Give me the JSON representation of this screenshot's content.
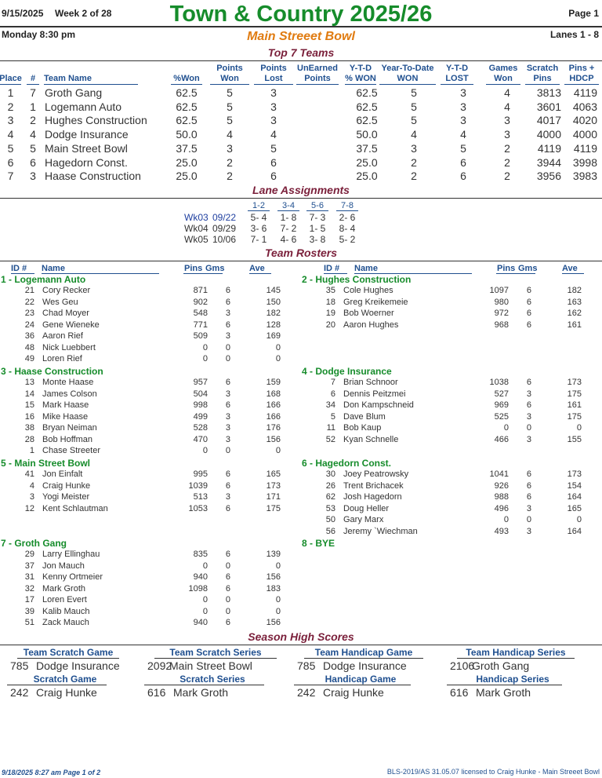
{
  "header": {
    "date": "9/15/2025",
    "week": "Week 2 of 28",
    "title": "Town & Country 2025/26",
    "page": "Page 1",
    "day_time": "Monday   8:30 pm",
    "center": "Main Streeet Bowl",
    "lanes": "Lanes 1 - 8"
  },
  "top_teams": {
    "title": "Top 7 Teams",
    "headers": [
      "Place",
      "#",
      "Team Name",
      "%Won",
      "Points Won",
      "Points Lost",
      "UnEarned Points",
      "Y-T-D % WON",
      "Year-To-Date WON",
      "Y-T-D LOST",
      "Games Won",
      "Scratch Pins",
      "Pins + HDCP"
    ],
    "rows": [
      {
        "place": "1",
        "num": "7",
        "name": "Groth Gang",
        "pct": "62.5",
        "pw": "5",
        "pl": "3",
        "ue": "",
        "ytdpct": "62.5",
        "ytdw": "5",
        "ytdl": "3",
        "gw": "4",
        "scr": "3813",
        "hdcp": "4119"
      },
      {
        "place": "2",
        "num": "1",
        "name": "Logemann Auto",
        "pct": "62.5",
        "pw": "5",
        "pl": "3",
        "ue": "",
        "ytdpct": "62.5",
        "ytdw": "5",
        "ytdl": "3",
        "gw": "4",
        "scr": "3601",
        "hdcp": "4063"
      },
      {
        "place": "3",
        "num": "2",
        "name": "Hughes Construction",
        "pct": "62.5",
        "pw": "5",
        "pl": "3",
        "ue": "",
        "ytdpct": "62.5",
        "ytdw": "5",
        "ytdl": "3",
        "gw": "3",
        "scr": "4017",
        "hdcp": "4020"
      },
      {
        "place": "4",
        "num": "4",
        "name": "Dodge Insurance",
        "pct": "50.0",
        "pw": "4",
        "pl": "4",
        "ue": "",
        "ytdpct": "50.0",
        "ytdw": "4",
        "ytdl": "4",
        "gw": "3",
        "scr": "4000",
        "hdcp": "4000"
      },
      {
        "place": "5",
        "num": "5",
        "name": "Main Street Bowl",
        "pct": "37.5",
        "pw": "3",
        "pl": "5",
        "ue": "",
        "ytdpct": "37.5",
        "ytdw": "3",
        "ytdl": "5",
        "gw": "2",
        "scr": "4119",
        "hdcp": "4119"
      },
      {
        "place": "6",
        "num": "6",
        "name": "Hagedorn Const.",
        "pct": "25.0",
        "pw": "2",
        "pl": "6",
        "ue": "",
        "ytdpct": "25.0",
        "ytdw": "2",
        "ytdl": "6",
        "gw": "2",
        "scr": "3944",
        "hdcp": "3998"
      },
      {
        "place": "7",
        "num": "3",
        "name": "Haase Construction",
        "pct": "25.0",
        "pw": "2",
        "pl": "6",
        "ue": "",
        "ytdpct": "25.0",
        "ytdw": "2",
        "ytdl": "6",
        "gw": "2",
        "scr": "3956",
        "hdcp": "3983"
      }
    ]
  },
  "lanes": {
    "title": "Lane Assignments",
    "pairs": [
      "1-2",
      "3-4",
      "5-6",
      "7-8"
    ],
    "rows": [
      {
        "wk": "Wk03",
        "date": "09/22",
        "a": "5- 4",
        "b": "1- 8",
        "c": "7- 3",
        "d": "2- 6"
      },
      {
        "wk": "Wk04",
        "date": "09/29",
        "a": "3- 6",
        "b": "7- 2",
        "c": "1- 5",
        "d": "8- 4"
      },
      {
        "wk": "Wk05",
        "date": "10/06",
        "a": "7- 1",
        "b": "4- 6",
        "c": "3- 8",
        "d": "5- 2"
      }
    ]
  },
  "rosters": {
    "title": "Team Rosters",
    "headers": {
      "id": "ID #",
      "name": "Name",
      "pins": "Pins",
      "gms": "Gms",
      "ave": "Ave"
    },
    "left": [
      {
        "team": "1 - Logemann Auto",
        "players": [
          [
            "21",
            "Cory Recker",
            "871",
            "6",
            "145"
          ],
          [
            "22",
            "Wes Geu",
            "902",
            "6",
            "150"
          ],
          [
            "23",
            "Chad Moyer",
            "548",
            "3",
            "182"
          ],
          [
            "24",
            "Gene Wieneke",
            "771",
            "6",
            "128"
          ],
          [
            "36",
            "Aaron Rief",
            "509",
            "3",
            "169"
          ],
          [
            "48",
            "Nick Luebbert",
            "0",
            "0",
            "0"
          ],
          [
            "49",
            "Loren Rief",
            "0",
            "0",
            "0"
          ]
        ]
      },
      {
        "team": "3 - Haase Construction",
        "players": [
          [
            "13",
            "Monte Haase",
            "957",
            "6",
            "159"
          ],
          [
            "14",
            "James Colson",
            "504",
            "3",
            "168"
          ],
          [
            "15",
            "Mark Haase",
            "998",
            "6",
            "166"
          ],
          [
            "16",
            "Mike Haase",
            "499",
            "3",
            "166"
          ],
          [
            "38",
            "Bryan Neiman",
            "528",
            "3",
            "176"
          ],
          [
            "28",
            "Bob Hoffman",
            "470",
            "3",
            "156"
          ],
          [
            "1",
            "Chase Streeter",
            "0",
            "0",
            "0"
          ]
        ]
      },
      {
        "team": "5 - Main Street Bowl",
        "players": [
          [
            "41",
            "Jon Einfalt",
            "995",
            "6",
            "165"
          ],
          [
            "4",
            "Craig Hunke",
            "1039",
            "6",
            "173"
          ],
          [
            "3",
            "Yogi Meister",
            "513",
            "3",
            "171"
          ],
          [
            "12",
            "Kent Schlautman",
            "1053",
            "6",
            "175"
          ]
        ]
      },
      {
        "team": "7 - Groth Gang",
        "players": [
          [
            "29",
            "Larry Ellinghau",
            "835",
            "6",
            "139"
          ],
          [
            "37",
            "Jon Mauch",
            "0",
            "0",
            "0"
          ],
          [
            "31",
            "Kenny Ortmeier",
            "940",
            "6",
            "156"
          ],
          [
            "32",
            "Mark Groth",
            "1098",
            "6",
            "183"
          ],
          [
            "17",
            "Loren Evert",
            "0",
            "0",
            "0"
          ],
          [
            "39",
            "Kalib Mauch",
            "0",
            "0",
            "0"
          ],
          [
            "51",
            "Zack Mauch",
            "940",
            "6",
            "156"
          ]
        ]
      }
    ],
    "right": [
      {
        "team": "2 - Hughes Construction",
        "players": [
          [
            "35",
            "Cole Hughes",
            "1097",
            "6",
            "182"
          ],
          [
            "18",
            "Greg Kreikemeie",
            "980",
            "6",
            "163"
          ],
          [
            "19",
            "Bob Woerner",
            "972",
            "6",
            "162"
          ],
          [
            "20",
            "Aaron Hughes",
            "968",
            "6",
            "161"
          ]
        ]
      },
      {
        "team": "4 - Dodge Insurance",
        "players": [
          [
            "7",
            "Brian Schnoor",
            "1038",
            "6",
            "173"
          ],
          [
            "6",
            "Dennis Peitzmei",
            "527",
            "3",
            "175"
          ],
          [
            "34",
            "Don Kampschneid",
            "969",
            "6",
            "161"
          ],
          [
            "5",
            "Dave Blum",
            "525",
            "3",
            "175"
          ],
          [
            "11",
            "Bob Kaup",
            "0",
            "0",
            "0"
          ],
          [
            "52",
            "Kyan Schnelle",
            "466",
            "3",
            "155"
          ]
        ]
      },
      {
        "team": "6 - Hagedorn Const.",
        "players": [
          [
            "30",
            "Joey Peatrowsky",
            "1041",
            "6",
            "173"
          ],
          [
            "26",
            "Trent Brichacek",
            "926",
            "6",
            "154"
          ],
          [
            "62",
            "Josh Hagedorn",
            "988",
            "6",
            "164"
          ],
          [
            "53",
            "Doug Heller",
            "496",
            "3",
            "165"
          ],
          [
            "50",
            "Gary Marx",
            "0",
            "0",
            "0"
          ],
          [
            "56",
            "Jeremy `Wiechman",
            "493",
            "3",
            "164"
          ]
        ]
      },
      {
        "team": "8 - BYE",
        "players": []
      }
    ]
  },
  "high_scores": {
    "title": "Season High Scores",
    "row1": [
      {
        "label": "Team Scratch Game",
        "score": "785",
        "who": "Dodge Insurance"
      },
      {
        "label": "Team Scratch Series",
        "score": "2092",
        "who": "Main Street Bowl"
      },
      {
        "label": "Team Handicap Game",
        "score": "785",
        "who": "Dodge Insurance"
      },
      {
        "label": "Team Handicap Series",
        "score": "2106",
        "who": "Groth Gang"
      }
    ],
    "row2": [
      {
        "label": "Scratch Game",
        "score": "242",
        "who": "Craig Hunke"
      },
      {
        "label": "Scratch Series",
        "score": "616",
        "who": "Mark Groth"
      },
      {
        "label": "Handicap Game",
        "score": "242",
        "who": "Craig Hunke"
      },
      {
        "label": "Handicap Series",
        "score": "616",
        "who": "Mark Groth"
      }
    ]
  },
  "footer": {
    "left": "9/18/2025  8:27 am  Page 1 of 2",
    "right": "BLS-2019/AS 31.05.07 licensed to Craig Hunke - Main Streeet Bowl"
  }
}
